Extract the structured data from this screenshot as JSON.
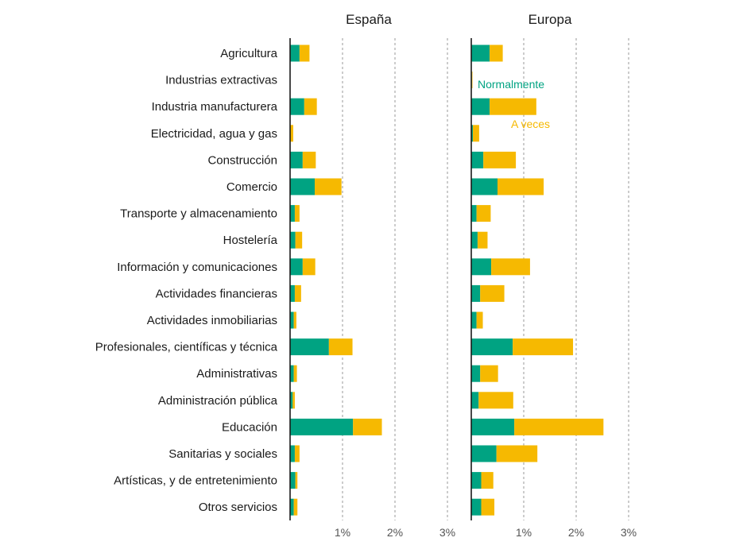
{
  "chart_data": {
    "type": "bar",
    "stacked": true,
    "orientation": "horizontal",
    "categories": [
      "Agricultura",
      "Industrias extractivas",
      "Industria manufacturera",
      "Electricidad, agua y gas",
      "Construcción",
      "Comercio",
      "Transporte y almacenamiento",
      "Hostelería",
      "Información y comunicaciones",
      "Actividades financieras",
      "Actividades inmobiliarias",
      "Profesionales, científicas y técnica",
      "Administrativas",
      "Administración pública",
      "Educación",
      "Sanitarias y sociales",
      "Artísticas, y de entretenimiento",
      "Otros servicios"
    ],
    "series_names": [
      "Normalmente",
      "A veces"
    ],
    "colors": {
      "normalmente": "#00a382",
      "a_veces": "#f6b901"
    },
    "xlim": [
      0,
      3
    ],
    "xticks": [
      1,
      2,
      3
    ],
    "xtick_labels": [
      "1%",
      "2%",
      "3%"
    ],
    "panels": [
      {
        "title": "España",
        "series": [
          {
            "name": "Normalmente",
            "values": [
              0.18,
              0.0,
              0.27,
              0.0,
              0.24,
              0.47,
              0.09,
              0.1,
              0.24,
              0.09,
              0.07,
              0.74,
              0.07,
              0.05,
              1.2,
              0.09,
              0.1,
              0.07
            ]
          },
          {
            "name": "A veces",
            "values": [
              0.19,
              0.0,
              0.24,
              0.06,
              0.25,
              0.51,
              0.09,
              0.13,
              0.24,
              0.12,
              0.05,
              0.45,
              0.06,
              0.04,
              0.55,
              0.09,
              0.04,
              0.07
            ]
          }
        ]
      },
      {
        "title": "Europa",
        "series": [
          {
            "name": "Normalmente",
            "values": [
              0.35,
              0.01,
              0.35,
              0.03,
              0.23,
              0.5,
              0.1,
              0.12,
              0.38,
              0.17,
              0.1,
              0.79,
              0.17,
              0.14,
              0.82,
              0.48,
              0.19,
              0.19
            ]
          },
          {
            "name": "A veces",
            "values": [
              0.25,
              0.01,
              0.89,
              0.12,
              0.62,
              0.88,
              0.27,
              0.19,
              0.74,
              0.46,
              0.12,
              1.15,
              0.34,
              0.66,
              1.7,
              0.78,
              0.23,
              0.25
            ]
          }
        ]
      }
    ],
    "legend": [
      {
        "label": "Normalmente",
        "color": "#00a382"
      },
      {
        "label": "A veces",
        "color": "#f6b901"
      }
    ],
    "legend_placement": "inside right panel, near top"
  }
}
